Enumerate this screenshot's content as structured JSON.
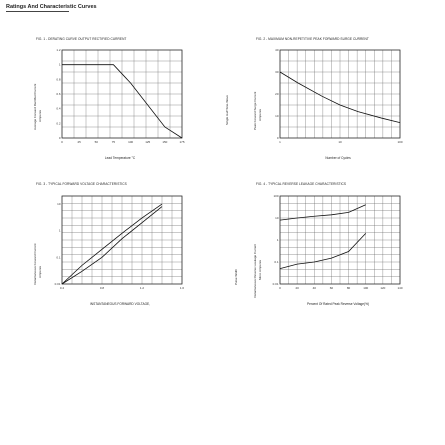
{
  "page": {
    "title": "Ratings And Characteristic Curves"
  },
  "figures": [
    {
      "title": "FIG. 1 - DERATING CURVE OUTPUT RECTIFIED CURRENT",
      "ylabel": "Average Forward Rectified Current",
      "yunit": "Amperes",
      "xlabel": "Lead Temperature",
      "xunit": "°C"
    },
    {
      "title": "FIG. 2 - MAXIMUM NON-REPETITIVE PEAK FORWARD SURGE CURRENT",
      "ylabel": "Peak Forward Surge Current",
      "yunit": "Amperes",
      "xlabel": "Number of Cycles",
      "xunit": "",
      "side_note": "Single Half Sine-Wave"
    },
    {
      "title": "FIG. 3 - TYPICAL FORWARD VOLTAGE CHARACTERISTICS",
      "ylabel": "Instantaneous Forward Current",
      "yunit": "Amperes",
      "xlabel": "INSTANTANEOUS FORWARD VOLTAGE,",
      "xunit": "",
      "side_note": "Pulse Width"
    },
    {
      "title": "FIG. 4 - TYPICAL REVERSE LEAKAGE CHARACTERISTICS",
      "ylabel": "Instantaneous Reverse Leakage Current",
      "yunit": "Micro Amperes",
      "xlabel": "Percent Of Rated Peak Reverse Voltage(%)",
      "xunit": ""
    }
  ],
  "chart_data": [
    {
      "type": "line",
      "title": "FIG. 1 - DERATING CURVE OUTPUT RECTIFIED CURRENT",
      "xlabel": "Lead Temperature",
      "ylabel": "Average Forward Rectified Current",
      "x": [
        0,
        75,
        100,
        150,
        175
      ],
      "y": [
        1.0,
        1.0,
        0.75,
        0.15,
        0.0
      ],
      "xlim": [
        0,
        175
      ],
      "ylim": [
        0,
        1.2
      ]
    },
    {
      "type": "line",
      "title": "FIG. 2 - MAXIMUM NON-REPETITIVE PEAK FORWARD SURGE CURRENT",
      "xlabel": "Number of Cycles",
      "ylabel": "Peak Forward Surge Current",
      "x": [
        1,
        2,
        5,
        10,
        20,
        50,
        100
      ],
      "y": [
        30,
        25,
        19,
        15,
        12,
        9,
        7
      ],
      "xlim": [
        1,
        100
      ],
      "ylim": [
        0,
        40
      ]
    },
    {
      "type": "line",
      "title": "FIG. 3 - TYPICAL FORWARD VOLTAGE CHARACTERISTICS",
      "xlabel": "INSTANTANEOUS FORWARD VOLTAGE,",
      "ylabel": "Instantaneous Forward Current",
      "series": [
        {
          "values": [
            0.01,
            0.05,
            0.2,
            0.8,
            3,
            10
          ]
        },
        {
          "values": [
            0.01,
            0.03,
            0.1,
            0.5,
            2,
            8
          ]
        }
      ],
      "x": [
        0.4,
        0.6,
        0.8,
        1.0,
        1.2,
        1.4
      ],
      "xlim": [
        0.4,
        1.6
      ],
      "ylim": [
        0.01,
        20
      ]
    },
    {
      "type": "line",
      "title": "FIG. 4 - TYPICAL REVERSE LEAKAGE CHARACTERISTICS",
      "xlabel": "Percent Of Rated Peak Reverse Voltage(%)",
      "ylabel": "Instantaneous Reverse Leakage Current",
      "series": [
        {
          "values": [
            8,
            10,
            12,
            14,
            18,
            40
          ]
        },
        {
          "values": [
            0.05,
            0.08,
            0.1,
            0.15,
            0.3,
            2
          ]
        }
      ],
      "x": [
        0,
        20,
        40,
        60,
        80,
        100
      ],
      "xlim": [
        0,
        140
      ],
      "ylim": [
        0.01,
        100
      ]
    }
  ]
}
